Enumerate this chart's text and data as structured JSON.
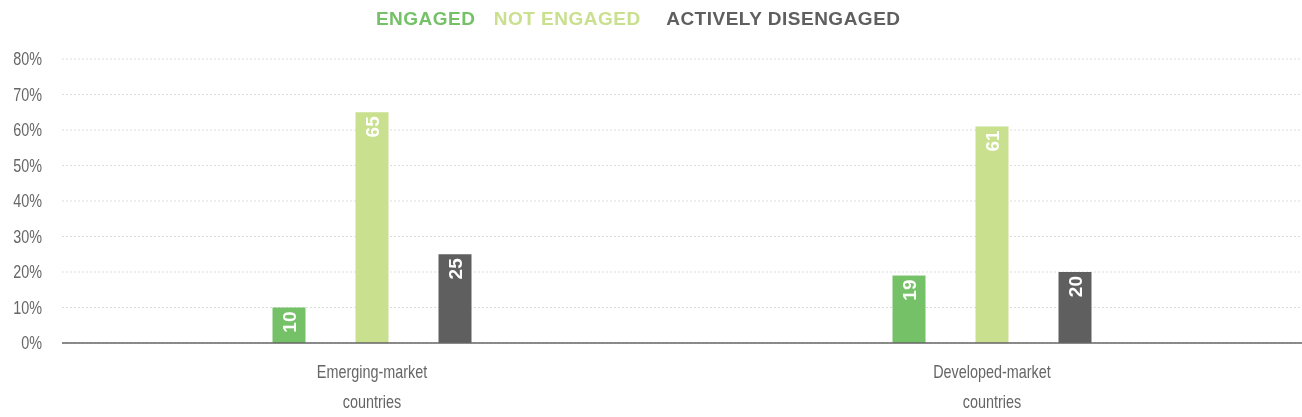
{
  "chart_data": {
    "type": "bar",
    "categories": [
      "Emerging-market countries",
      "Developed-market countries"
    ],
    "series": [
      {
        "name": "ENGAGED",
        "color": "#74c167",
        "values": [
          10,
          19
        ]
      },
      {
        "name": "NOT ENGAGED",
        "color": "#c9e08f",
        "values": [
          65,
          61
        ]
      },
      {
        "name": "ACTIVELY DISENGAGED",
        "color": "#5f5f5f",
        "values": [
          25,
          20
        ]
      }
    ],
    "ylim": [
      0,
      80
    ],
    "yticks": [
      {
        "value": 0,
        "label": "0%"
      },
      {
        "value": 10,
        "label": "10%"
      },
      {
        "value": 20,
        "label": "20%"
      },
      {
        "value": 30,
        "label": "30%"
      },
      {
        "value": 40,
        "label": "40%"
      },
      {
        "value": 50,
        "label": "50%"
      },
      {
        "value": 60,
        "label": "60%"
      },
      {
        "value": 70,
        "label": "70%"
      },
      {
        "value": 80,
        "label": "80%"
      }
    ],
    "grid": "y",
    "legend": "top",
    "data_labels": true
  }
}
